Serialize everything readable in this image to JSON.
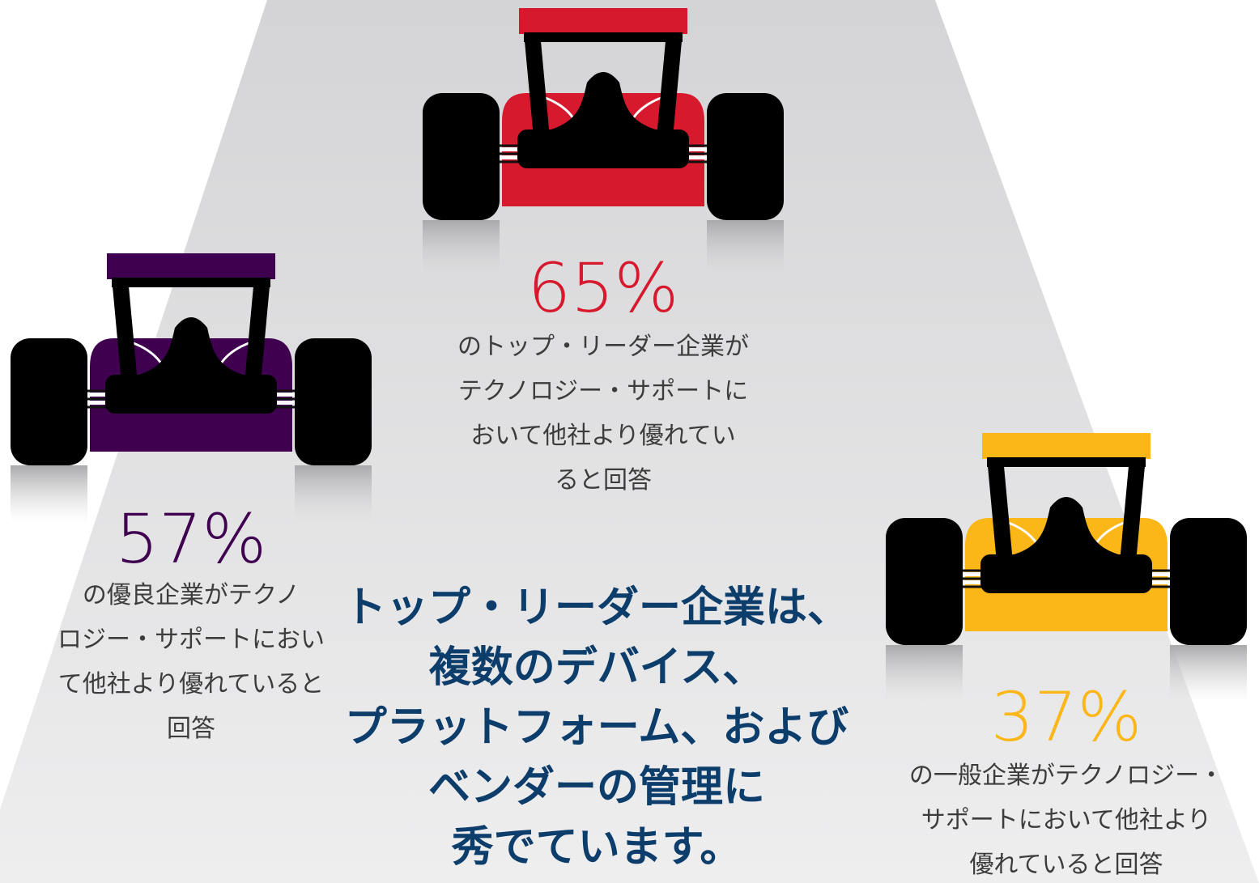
{
  "items": [
    {
      "value": "65%",
      "color": "#d7192d",
      "description": [
        "のトップ・リーダー企業が",
        "テクノロジー・サポートに",
        "おいて他社より優れてい",
        "ると回答"
      ]
    },
    {
      "value": "57%",
      "color": "#3f0050",
      "description": [
        "の優良企業がテクノ",
        "ロジー・サポートにおい",
        "て他社より優れていると",
        "回答"
      ]
    },
    {
      "value": "37%",
      "color": "#fbb617",
      "description": [
        "の一般企業がテクノロジー・",
        "サポートにおいて他社より",
        "優れていると回答"
      ]
    }
  ],
  "headline": [
    "トップ・リーダー企業は、",
    "複数のデバイス、",
    "プラットフォーム、および",
    "ベンダーの管理に",
    "秀でています。"
  ]
}
